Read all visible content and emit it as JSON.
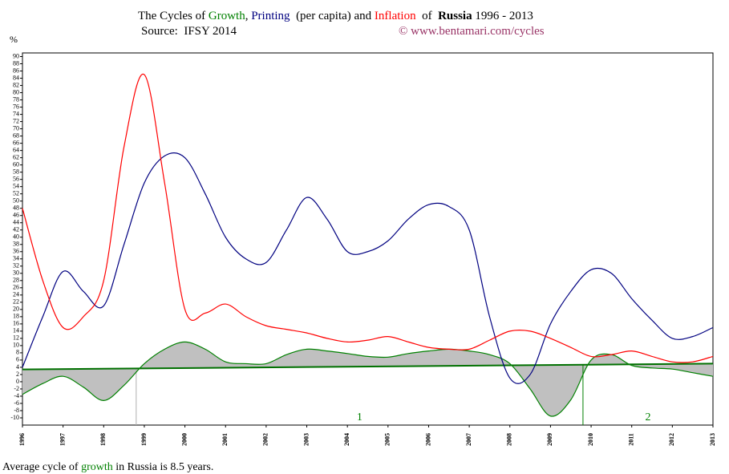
{
  "chart_data": {
    "type": "line",
    "title_parts": [
      "The Cycles of ",
      ", ",
      "  (per capita) and ",
      "  of  ",
      "Russia",
      " 1996 - 2013"
    ],
    "subtitle": "Source:  IFSY 2014",
    "credit": "© www.bentamari.com/cycles",
    "y_unit": "%",
    "footer_parts": [
      "Average cycle of ",
      "growth",
      " in Russia is 8.5 years."
    ],
    "x": [
      1996,
      1996.5,
      1997,
      1997.5,
      1998,
      1998.5,
      1999,
      1999.5,
      2000,
      2000.5,
      2001,
      2001.5,
      2002,
      2002.5,
      2003,
      2003.5,
      2004,
      2004.5,
      2005,
      2005.5,
      2006,
      2006.5,
      2007,
      2007.5,
      2008,
      2008.5,
      2009,
      2009.5,
      2010,
      2010.5,
      2011,
      2011.5,
      2012,
      2012.5,
      2013
    ],
    "series": [
      {
        "name": "Growth",
        "color": "#008000",
        "values": [
          -3.5,
          -0.5,
          1.5,
          -1.5,
          -5.2,
          -1,
          5,
          9,
          11,
          9,
          5.5,
          5,
          5,
          7.5,
          9,
          8.5,
          7.8,
          7,
          6.8,
          7.8,
          8.5,
          9,
          8.5,
          7.5,
          5,
          -2,
          -9.5,
          -5,
          6,
          7.5,
          4.5,
          3.8,
          3.5,
          2.5,
          1.5
        ]
      },
      {
        "name": "Printing",
        "color": "#000080",
        "values": [
          4,
          18,
          30.5,
          25,
          21,
          38,
          55,
          62.5,
          62,
          52,
          40,
          34,
          33,
          42,
          51,
          45,
          36,
          36,
          39,
          45,
          49,
          48.5,
          42,
          18,
          1,
          2,
          16,
          25,
          31,
          30,
          23,
          17,
          12,
          12.5,
          15
        ]
      },
      {
        "name": "Inflation",
        "color": "#ff0000",
        "values": [
          48,
          28,
          15,
          18,
          28,
          65,
          85,
          55,
          20,
          19,
          21.5,
          18,
          15.5,
          14.5,
          13.5,
          12,
          11,
          11.5,
          12.5,
          11,
          9.5,
          9,
          9,
          11.5,
          14,
          14,
          12,
          9.5,
          7,
          7.5,
          8.5,
          7,
          5.5,
          5.5,
          7
        ]
      }
    ],
    "trend": {
      "color": "#007000",
      "x": [
        1996,
        2013
      ],
      "values": [
        3.4,
        5
      ]
    },
    "cycle_starts": [
      1998.8,
      2009.8
    ],
    "cycle_labels": [
      "1",
      "2"
    ],
    "xlim": [
      1996,
      2013
    ],
    "xticks": [
      1996,
      1997,
      1998,
      1999,
      2000,
      2001,
      2002,
      2003,
      2004,
      2005,
      2006,
      2007,
      2008,
      2009,
      2010,
      2011,
      2012,
      2013
    ],
    "ylim": [
      -12,
      91
    ],
    "yticks": [
      -10,
      -8,
      -6,
      -4,
      -2,
      0,
      2,
      4,
      6,
      8,
      10,
      12,
      14,
      16,
      18,
      20,
      22,
      24,
      26,
      28,
      30,
      32,
      34,
      36,
      38,
      40,
      42,
      44,
      46,
      48,
      50,
      52,
      54,
      56,
      58,
      60,
      62,
      64,
      66,
      68,
      70,
      72,
      74,
      76,
      78,
      80,
      82,
      84,
      86,
      88,
      90
    ],
    "grid": false
  }
}
